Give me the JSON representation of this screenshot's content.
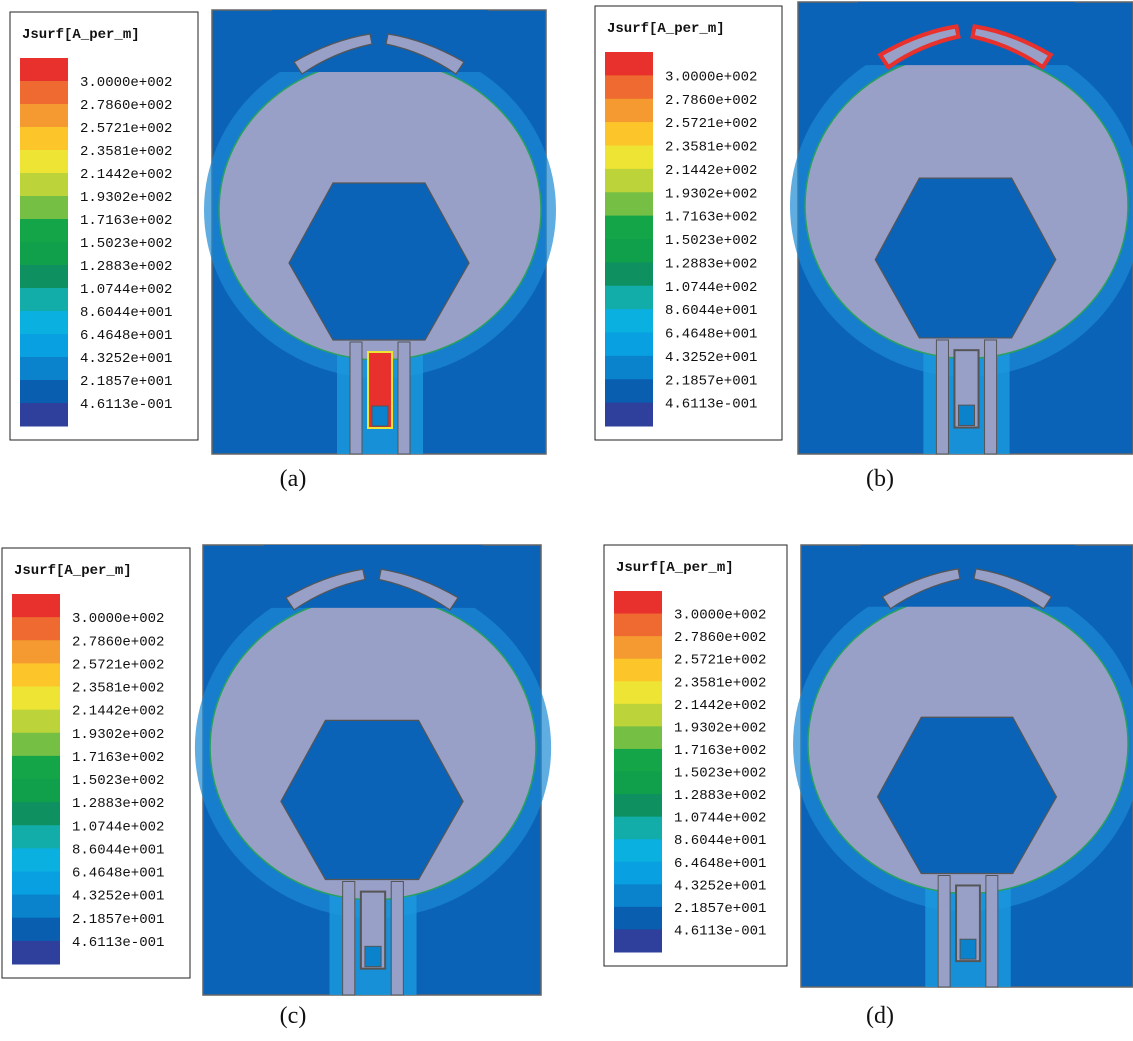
{
  "panels": [
    {
      "legend_title": "Jsurf[A_per_m]",
      "legend_labels": [
        "3.0000e+002",
        "2.7860e+002",
        "2.5721e+002",
        "2.3581e+002",
        "2.1442e+002",
        "1.9302e+002",
        "1.7163e+002",
        "1.5023e+002",
        "1.2883e+002",
        "1.0744e+002",
        "8.6044e+001",
        "6.4648e+001",
        "4.3252e+001",
        "2.1857e+001",
        "4.6113e-001"
      ],
      "caption": "(a)"
    },
    {
      "legend_title": "Jsurf[A_per_m]",
      "legend_labels": [
        "3.0000e+002",
        "2.7860e+002",
        "2.5721e+002",
        "2.3581e+002",
        "2.1442e+002",
        "1.9302e+002",
        "1.7163e+002",
        "1.5023e+002",
        "1.2883e+002",
        "1.0744e+002",
        "8.6044e+001",
        "6.4648e+001",
        "4.3252e+001",
        "2.1857e+001",
        "4.6113e-001"
      ],
      "caption": "(b)"
    },
    {
      "legend_title": "Jsurf[A_per_m]",
      "legend_labels": [
        "3.0000e+002",
        "2.7860e+002",
        "2.5721e+002",
        "2.3581e+002",
        "2.1442e+002",
        "1.9302e+002",
        "1.7163e+002",
        "1.5023e+002",
        "1.2883e+002",
        "1.0744e+002",
        "8.6044e+001",
        "6.4648e+001",
        "4.3252e+001",
        "2.1857e+001",
        "4.6113e-001"
      ],
      "caption": "(c)"
    },
    {
      "legend_title": "Jsurf[A_per_m]",
      "legend_labels": [
        "3.0000e+002",
        "2.7860e+002",
        "2.5721e+002",
        "2.3581e+002",
        "2.1442e+002",
        "1.9302e+002",
        "1.7163e+002",
        "1.5023e+002",
        "1.2883e+002",
        "1.0744e+002",
        "8.6044e+001",
        "6.4648e+001",
        "4.3252e+001",
        "2.1857e+001",
        "4.6113e-001"
      ],
      "caption": "(d)"
    }
  ]
}
